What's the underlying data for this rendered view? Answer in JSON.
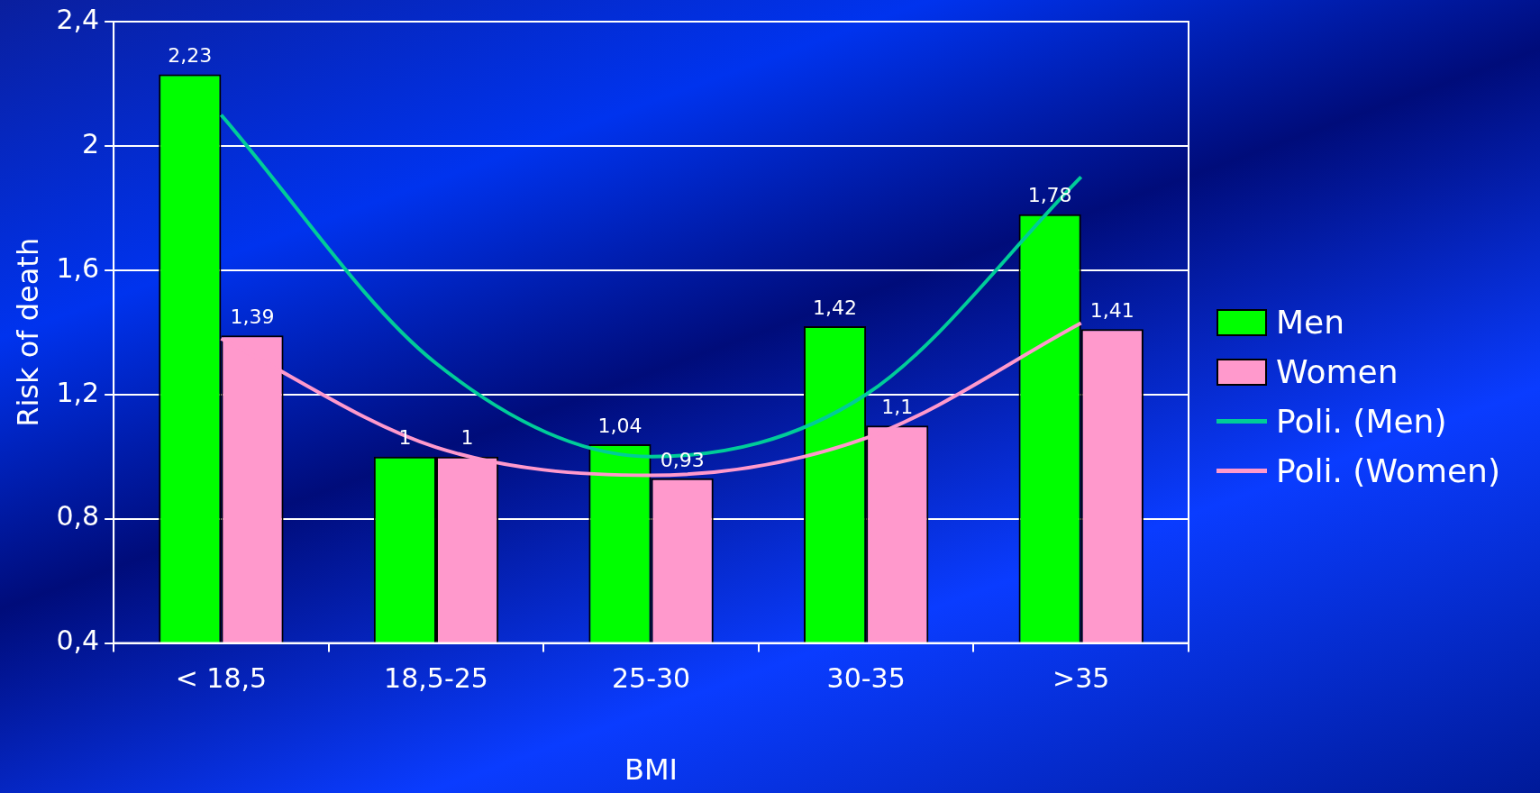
{
  "chart_data": {
    "type": "bar",
    "xlabel": "BMI",
    "ylabel": "Risk of death",
    "categories": [
      "< 18,5",
      "18,5-25",
      "25-30",
      "30-35",
      ">35"
    ],
    "series": [
      {
        "name": "Men",
        "color": "#00ff00",
        "values": [
          2.23,
          1,
          1.04,
          1.42,
          1.78
        ],
        "value_labels": [
          "2,23",
          "1",
          "1,04",
          "1,42",
          "1,78"
        ]
      },
      {
        "name": "Women",
        "color": "#ff99cc",
        "values": [
          1.39,
          1,
          0.93,
          1.1,
          1.41
        ],
        "value_labels": [
          "1,39",
          "1",
          "0,93",
          "1,1",
          "1,41"
        ]
      },
      {
        "name": "Poli. (Men)",
        "type": "line",
        "color": "#00cc99",
        "values": [
          2.1,
          1.3,
          1.0,
          1.2,
          1.9
        ]
      },
      {
        "name": "Poli. (Women)",
        "type": "line",
        "color": "#ff99cc",
        "values": [
          1.38,
          1.03,
          0.94,
          1.06,
          1.43
        ]
      }
    ],
    "ylim": [
      0.4,
      2.4
    ],
    "yticks": [
      {
        "value": 0.4,
        "label": "0,4"
      },
      {
        "value": 0.8,
        "label": "0,8"
      },
      {
        "value": 1.2,
        "label": "1,2"
      },
      {
        "value": 1.6,
        "label": "1,6"
      },
      2,
      {
        "value": 2.4,
        "label": "2,4"
      }
    ],
    "grid": "y",
    "legend": "right"
  }
}
